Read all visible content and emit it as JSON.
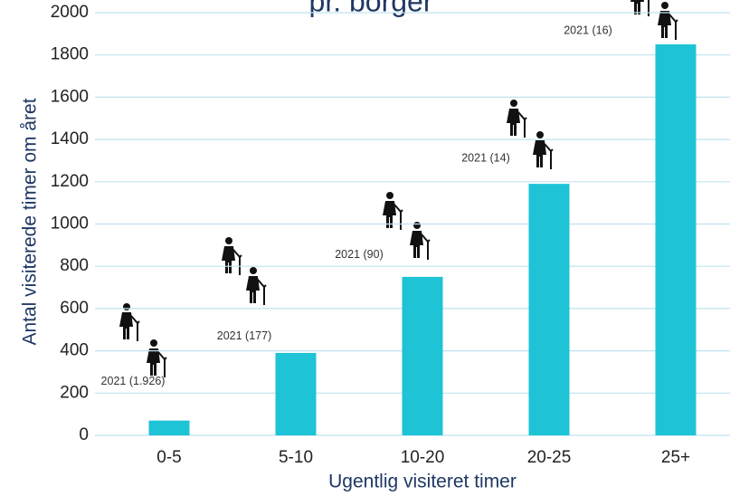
{
  "chart_data": {
    "type": "bar",
    "title": "pr. borger",
    "categories": [
      "0-5",
      "5-10",
      "10-20",
      "20-25",
      "25+"
    ],
    "values": [
      70,
      390,
      750,
      1190,
      1850
    ],
    "annotations": [
      "2021 (1.926)",
      "2021 (177)",
      "2021 (90)",
      "2021 (14)",
      "2021 (16)"
    ],
    "color": "#1ec3d6",
    "ylim": [
      0,
      2000
    ],
    "yticks": [
      0,
      200,
      400,
      600,
      800,
      1000,
      1200,
      1400,
      1600,
      1800,
      2000
    ],
    "grid": true,
    "ylabel": "Antal visiterede timer om året",
    "xlabel": "Ugentlig visiteret timer"
  }
}
